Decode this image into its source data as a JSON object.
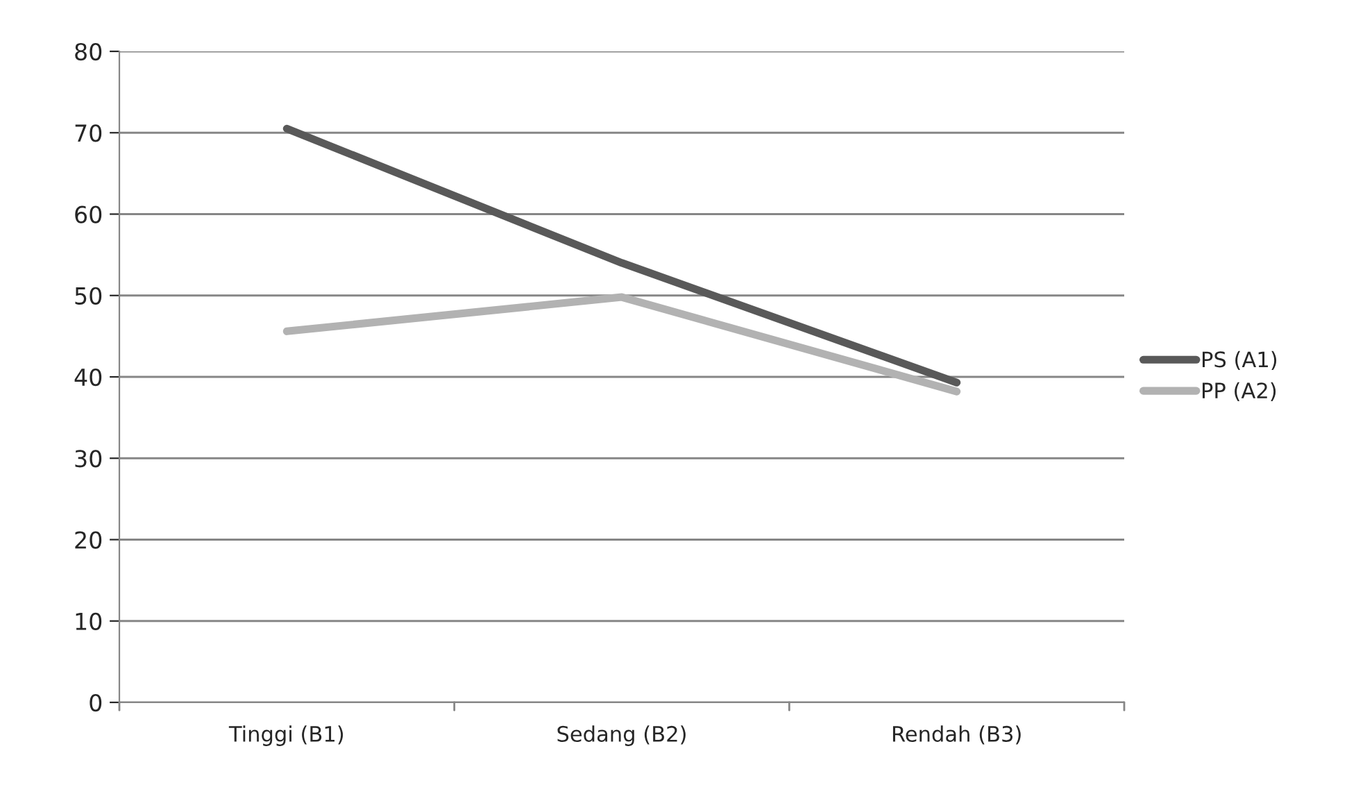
{
  "chart_data": {
    "type": "line",
    "categories": [
      "Tinggi (B1)",
      "Sedang (B2)",
      "Rendah (B3)"
    ],
    "series": [
      {
        "name": "PS (A1)",
        "color": "#595959",
        "values": [
          70.5,
          54,
          39.3
        ]
      },
      {
        "name": "PP (A2)",
        "color": "#b2b2b2",
        "values": [
          45.6,
          49.8,
          38.2
        ]
      }
    ],
    "ylim": [
      0,
      80
    ],
    "yticks": [
      0,
      10,
      20,
      30,
      40,
      50,
      60,
      70,
      80
    ],
    "grid": "y",
    "legend": "right",
    "marker": "none",
    "line_style": "solid"
  }
}
